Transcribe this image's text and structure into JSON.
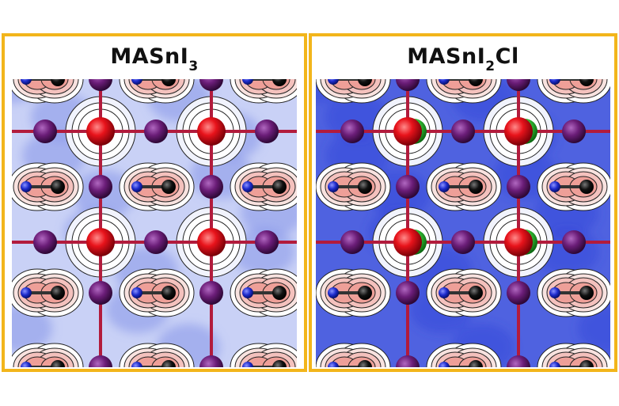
{
  "panels": [
    {
      "id": "left",
      "formula_main": "MASnI",
      "formula_sub": "3",
      "formula_tail": ""
    },
    {
      "id": "right",
      "formula_main": "MASnI",
      "formula_sub": "2",
      "formula_tail": "Cl"
    }
  ],
  "colors": {
    "frame": "#f2b51b",
    "background_blue": "#4f62e0",
    "light_blue": "#c9d1f6",
    "pink": "#f4c1bd",
    "tin_atom": "#e8131b",
    "iodine_atom": "#6b1d78",
    "chlorine_atom": "#38c93a",
    "nitrogen_atom": "#1d2bcc",
    "carbon_atom": "#111111",
    "bond": "#b21b3c"
  },
  "icons": [
    "tin-atom-icon",
    "iodine-atom-icon",
    "chlorine-atom-icon",
    "nitrogen-atom-icon",
    "carbon-atom-icon"
  ]
}
